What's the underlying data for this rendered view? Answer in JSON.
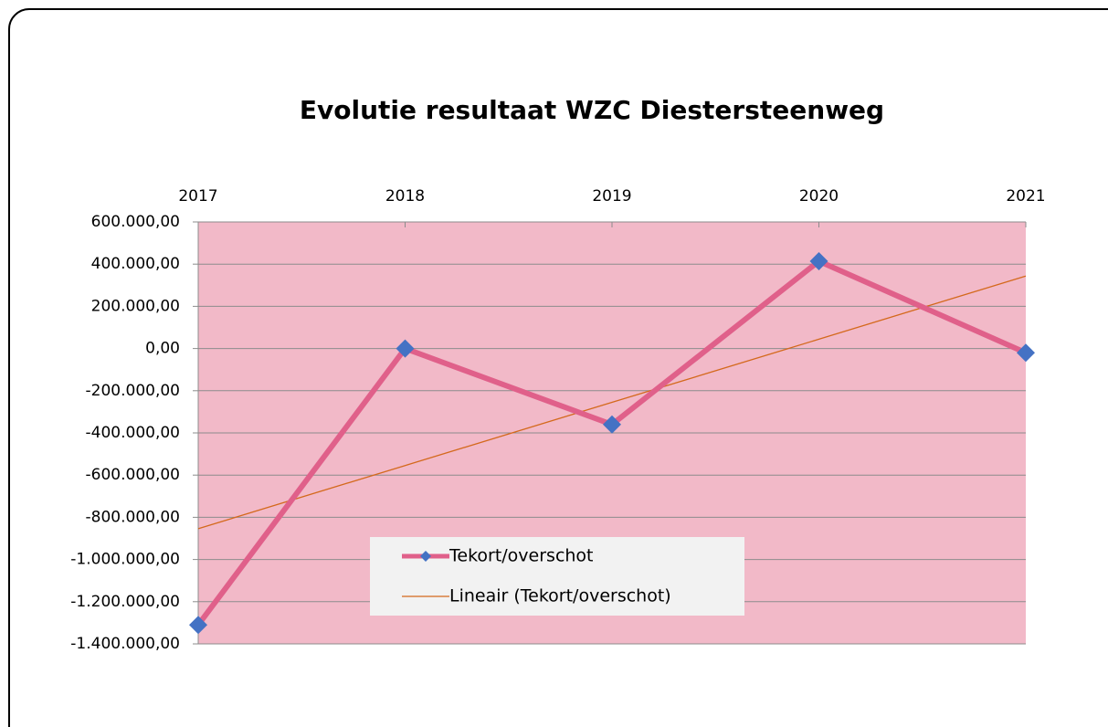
{
  "chart_data": {
    "type": "line",
    "title": "Evolutie resultaat WZC Diestersteenweg",
    "categories": [
      "2017",
      "2018",
      "2019",
      "2020",
      "2021"
    ],
    "series": [
      {
        "name": "Tekort/overschot",
        "color": "#e0608a",
        "marker_color": "#4472c4",
        "values": [
          -1310000,
          0,
          -360000,
          414000,
          -20000
        ]
      },
      {
        "name": "Lineair (Tekort/overschot)",
        "color": "#d4691c",
        "values": [
          -854000,
          -554600,
          -255200,
          44200,
          343600
        ]
      }
    ],
    "ylim": [
      -1400000,
      600000
    ],
    "yticks": [
      {
        "value": -1400000,
        "label": "-1.400.000,00"
      },
      {
        "value": -1200000,
        "label": "-1.200.000,00"
      },
      {
        "value": -1000000,
        "label": "-1.000.000,00"
      },
      {
        "value": -800000,
        "label": "-800.000,00"
      },
      {
        "value": -600000,
        "label": "-600.000,00"
      },
      {
        "value": -400000,
        "label": "-400.000,00"
      },
      {
        "value": -200000,
        "label": "-200.000,00"
      },
      {
        "value": 0,
        "label": "0,00"
      },
      {
        "value": 200000,
        "label": "200.000,00"
      },
      {
        "value": 400000,
        "label": "400.000,00"
      },
      {
        "value": 600000,
        "label": "600.000,00"
      }
    ],
    "grid": true,
    "plot_background": "#f2b9c8"
  }
}
